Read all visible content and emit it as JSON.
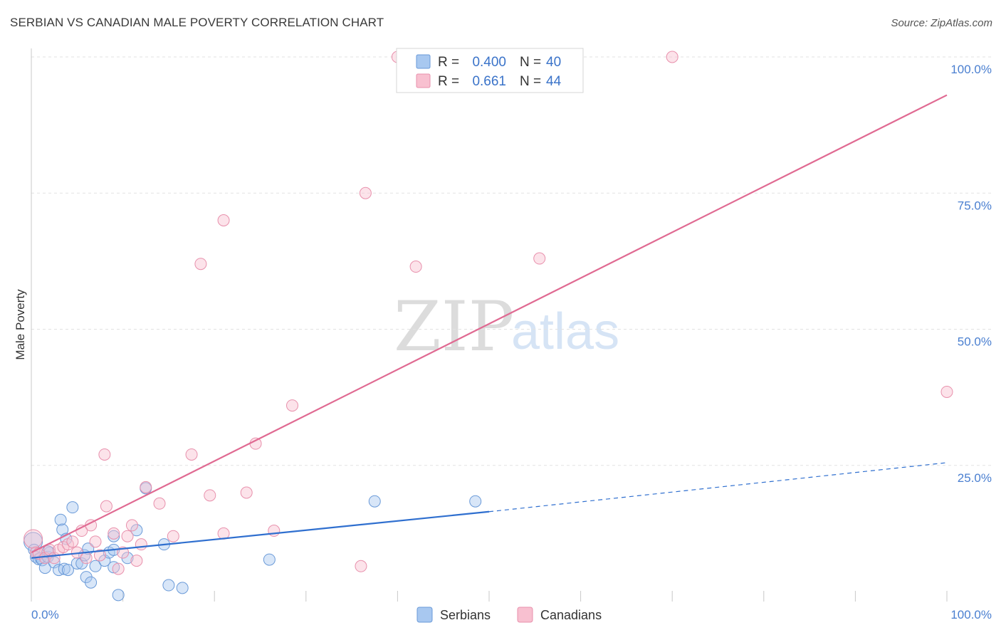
{
  "header": {
    "title": "SERBIAN VS CANADIAN MALE POVERTY CORRELATION CHART",
    "source": "Source: ZipAtlas.com"
  },
  "watermark": {
    "zip": "ZIP",
    "atlas": "atlas"
  },
  "legend": {
    "r_label": "R =",
    "n_label": "N =",
    "entries": [
      {
        "r": "0.400",
        "n": "40",
        "color": "#a8c8f0",
        "stroke": "#6a9ad8"
      },
      {
        "r": "0.661",
        "n": "44",
        "color": "#f8c0d0",
        "stroke": "#e890ac"
      }
    ]
  },
  "bottom_legend": [
    {
      "label": "Serbians",
      "color": "#a8c8f0",
      "stroke": "#6a9ad8"
    },
    {
      "label": "Canadians",
      "color": "#f8c0d0",
      "stroke": "#e890ac"
    }
  ],
  "colors": {
    "serbians_line": "#2f6fcf",
    "canadians_line": "#e06a92",
    "grid": "#e2e2e2",
    "axis_text": "#4a7fd0"
  },
  "chart_data": {
    "type": "scatter",
    "title": "SERBIAN VS CANADIAN MALE POVERTY CORRELATION CHART",
    "xlabel": "",
    "ylabel": "Male Poverty",
    "xlim": [
      0,
      100
    ],
    "ylim": [
      0,
      100
    ],
    "x_tick_labels": [
      "0.0%",
      "100.0%"
    ],
    "y_ticks": [
      25,
      50,
      75,
      100
    ],
    "y_tick_labels": [
      "25.0%",
      "50.0%",
      "75.0%",
      "100.0%"
    ],
    "series": [
      {
        "name": "Serbians",
        "r": 0.4,
        "n": 40,
        "trend": {
          "x0": 0,
          "y0": 8.0,
          "x1": 50,
          "y1": 16.5,
          "dash_to_x": 100,
          "dash_to_y": 25.5
        },
        "points": [
          [
            0.2,
            11.0
          ],
          [
            0.3,
            9.5
          ],
          [
            0.5,
            8.2
          ],
          [
            0.8,
            7.8
          ],
          [
            1.0,
            8.0
          ],
          [
            1.2,
            7.6
          ],
          [
            1.5,
            6.2
          ],
          [
            1.8,
            8.2
          ],
          [
            2.0,
            9.0
          ],
          [
            2.5,
            7.2
          ],
          [
            3.0,
            5.8
          ],
          [
            3.2,
            15.0
          ],
          [
            3.4,
            13.2
          ],
          [
            3.6,
            6.0
          ],
          [
            3.8,
            11.5
          ],
          [
            4.0,
            5.8
          ],
          [
            4.5,
            17.3
          ],
          [
            5.0,
            7.0
          ],
          [
            5.5,
            7.0
          ],
          [
            5.8,
            8.5
          ],
          [
            6.0,
            4.5
          ],
          [
            6.2,
            9.7
          ],
          [
            6.5,
            3.5
          ],
          [
            7.0,
            6.5
          ],
          [
            8.0,
            7.5
          ],
          [
            8.5,
            9.0
          ],
          [
            9.0,
            9.5
          ],
          [
            9.0,
            6.3
          ],
          [
            9.0,
            12.0
          ],
          [
            9.5,
            1.2
          ],
          [
            10.5,
            8.0
          ],
          [
            11.5,
            13.1
          ],
          [
            12.5,
            20.8
          ],
          [
            14.5,
            10.5
          ],
          [
            15.0,
            3.0
          ],
          [
            16.5,
            2.5
          ],
          [
            26.0,
            7.7
          ],
          [
            37.5,
            18.4
          ],
          [
            48.5,
            18.4
          ],
          [
            1.8,
            9.2
          ]
        ]
      },
      {
        "name": "Canadians",
        "r": 0.661,
        "n": 44,
        "trend": {
          "x0": 0,
          "y0": 9.0,
          "x1": 100,
          "y1": 93.0
        },
        "points": [
          [
            0.2,
            11.5
          ],
          [
            0.5,
            9.0
          ],
          [
            0.8,
            8.8
          ],
          [
            1.5,
            8.0
          ],
          [
            2.0,
            9.5
          ],
          [
            2.5,
            8.0
          ],
          [
            3.0,
            9.5
          ],
          [
            3.5,
            10.0
          ],
          [
            4.0,
            10.5
          ],
          [
            4.5,
            11.0
          ],
          [
            5.0,
            9.0
          ],
          [
            5.5,
            13.0
          ],
          [
            6.0,
            8.0
          ],
          [
            6.5,
            14.0
          ],
          [
            7.0,
            11.0
          ],
          [
            7.5,
            8.5
          ],
          [
            8.0,
            27.0
          ],
          [
            8.2,
            17.5
          ],
          [
            9.0,
            12.5
          ],
          [
            9.5,
            6.0
          ],
          [
            10.0,
            9.0
          ],
          [
            10.5,
            12.0
          ],
          [
            11.0,
            14.0
          ],
          [
            11.5,
            7.5
          ],
          [
            12.0,
            10.5
          ],
          [
            12.5,
            21.0
          ],
          [
            14.0,
            18.0
          ],
          [
            15.5,
            12.0
          ],
          [
            17.5,
            27.0
          ],
          [
            18.5,
            62.0
          ],
          [
            19.5,
            19.5
          ],
          [
            21.0,
            70.0
          ],
          [
            21.0,
            12.5
          ],
          [
            23.5,
            20.0
          ],
          [
            24.5,
            29.0
          ],
          [
            26.5,
            13.0
          ],
          [
            28.5,
            36.0
          ],
          [
            36.0,
            6.5
          ],
          [
            36.5,
            75.0
          ],
          [
            40.0,
            100.0
          ],
          [
            42.0,
            61.5
          ],
          [
            55.5,
            63.0
          ],
          [
            70.0,
            100.0
          ],
          [
            100.0,
            38.5
          ]
        ]
      }
    ]
  }
}
